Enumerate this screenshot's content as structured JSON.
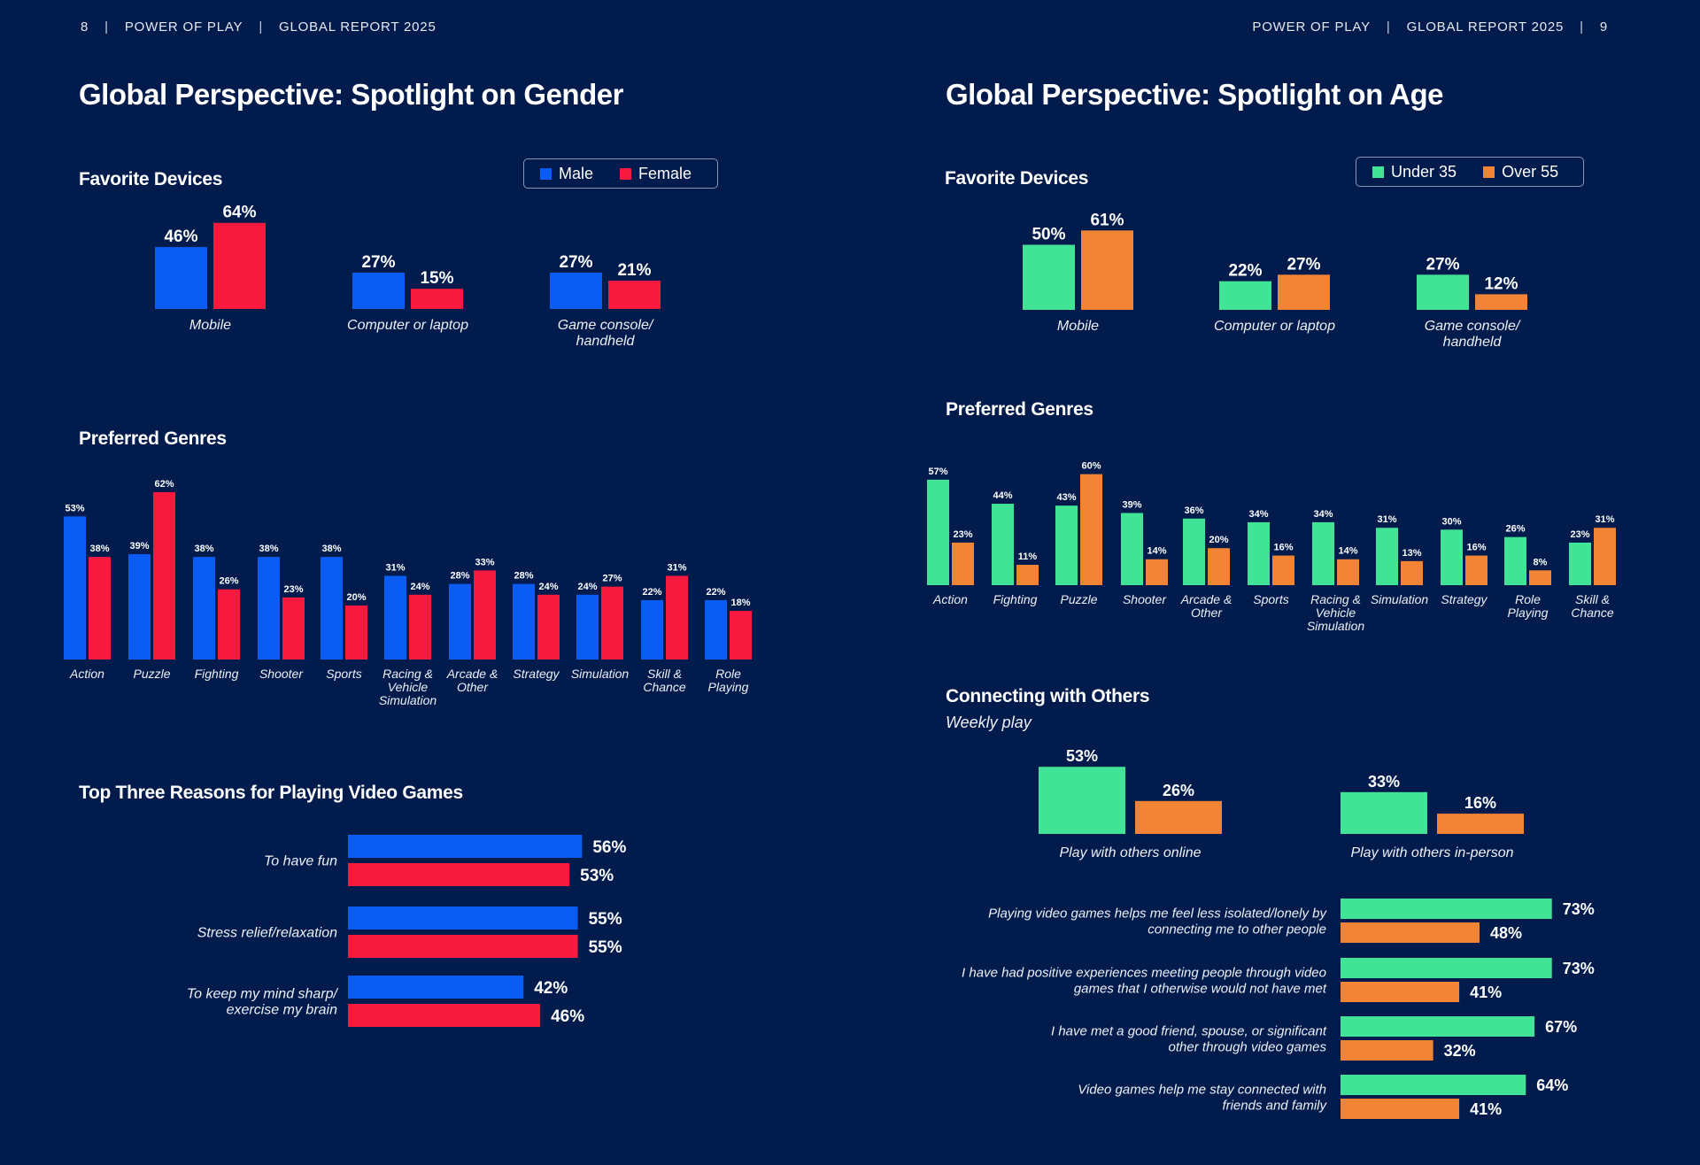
{
  "header_left": {
    "page": "8",
    "brand": "POWER OF PLAY",
    "report": "GLOBAL REPORT 2025"
  },
  "header_right": {
    "brand": "POWER OF PLAY",
    "report": "GLOBAL REPORT 2025",
    "page": "9"
  },
  "left": {
    "title": "Global Perspective: Spotlight on Gender",
    "legend": [
      {
        "label": "Male",
        "color": "#0a5cf2"
      },
      {
        "label": "Female",
        "color": "#f8193f"
      }
    ],
    "devices_title": "Favorite Devices",
    "genres_title": "Preferred Genres",
    "reasons_title": "Top Three Reasons for Playing Video Games"
  },
  "right": {
    "title": "Global Perspective: Spotlight on Age",
    "legend": [
      {
        "label": "Under 35",
        "color": "#41e397"
      },
      {
        "label": "Over 55",
        "color": "#f28535"
      }
    ],
    "devices_title": "Favorite Devices",
    "genres_title": "Preferred Genres",
    "connect_title": "Connecting with Others",
    "connect_subtitle": "Weekly play"
  },
  "chart_data": [
    {
      "id": "gender_devices",
      "type": "bar",
      "title": "Favorite Devices",
      "categories": [
        "Mobile",
        "Computer or laptop",
        "Game console/\nhandheld"
      ],
      "series": [
        {
          "name": "Male",
          "color": "#0a5cf2",
          "values": [
            46,
            27,
            27
          ]
        },
        {
          "name": "Female",
          "color": "#f8193f",
          "values": [
            64,
            15,
            21
          ]
        }
      ],
      "unit": "%",
      "ylim": [
        0,
        100
      ],
      "grid": false,
      "legend": "top-right"
    },
    {
      "id": "gender_genres",
      "type": "bar",
      "title": "Preferred Genres",
      "categories": [
        "Action",
        "Puzzle",
        "Fighting",
        "Shooter",
        "Sports",
        "Racing &\nVehicle\nSimulation",
        "Arcade &\nOther",
        "Strategy",
        "Simulation",
        "Skill &\nChance",
        "Role\nPlaying"
      ],
      "series": [
        {
          "name": "Male",
          "color": "#0a5cf2",
          "values": [
            53,
            39,
            38,
            38,
            38,
            31,
            28,
            28,
            24,
            22,
            22
          ]
        },
        {
          "name": "Female",
          "color": "#f8193f",
          "values": [
            38,
            62,
            26,
            23,
            20,
            24,
            33,
            24,
            27,
            31,
            18
          ]
        }
      ],
      "unit": "%",
      "ylim": [
        0,
        100
      ],
      "grid": false
    },
    {
      "id": "gender_reasons",
      "type": "bar",
      "orientation": "horizontal",
      "title": "Top Three Reasons for Playing Video Games",
      "categories": [
        "To have fun",
        "Stress relief/relaxation",
        "To keep my mind sharp/\nexercise my brain"
      ],
      "series": [
        {
          "name": "Male",
          "color": "#0a5cf2",
          "values": [
            56,
            55,
            42
          ]
        },
        {
          "name": "Female",
          "color": "#f8193f",
          "values": [
            53,
            55,
            46
          ]
        }
      ],
      "unit": "%",
      "xlim": [
        0,
        100
      ],
      "grid": false
    },
    {
      "id": "age_devices",
      "type": "bar",
      "title": "Favorite Devices",
      "categories": [
        "Mobile",
        "Computer or laptop",
        "Game console/\nhandheld"
      ],
      "series": [
        {
          "name": "Under 35",
          "color": "#41e397",
          "values": [
            50,
            22,
            27
          ]
        },
        {
          "name": "Over 55",
          "color": "#f28535",
          "values": [
            61,
            27,
            12
          ]
        }
      ],
      "unit": "%",
      "ylim": [
        0,
        100
      ],
      "grid": false,
      "legend": "top-right"
    },
    {
      "id": "age_genres",
      "type": "bar",
      "title": "Preferred Genres",
      "categories": [
        "Action",
        "Fighting",
        "Puzzle",
        "Shooter",
        "Arcade &\nOther",
        "Sports",
        "Racing &\nVehicle\nSimulation",
        "Simulation",
        "Strategy",
        "Role\nPlaying",
        "Skill &\nChance"
      ],
      "series": [
        {
          "name": "Under 35",
          "color": "#41e397",
          "values": [
            57,
            44,
            43,
            39,
            36,
            34,
            34,
            31,
            30,
            26,
            23
          ]
        },
        {
          "name": "Over 55",
          "color": "#f28535",
          "values": [
            23,
            11,
            60,
            14,
            20,
            16,
            14,
            13,
            16,
            8,
            31
          ]
        }
      ],
      "unit": "%",
      "ylim": [
        0,
        100
      ],
      "grid": false
    },
    {
      "id": "age_weekly_play",
      "type": "bar",
      "title": "Connecting with Others",
      "subtitle": "Weekly play",
      "categories": [
        "Play with others online",
        "Play with others in-person"
      ],
      "series": [
        {
          "name": "Under 35",
          "color": "#41e397",
          "values": [
            53,
            33
          ]
        },
        {
          "name": "Over 55",
          "color": "#f28535",
          "values": [
            26,
            16
          ]
        }
      ],
      "unit": "%",
      "ylim": [
        0,
        100
      ],
      "grid": false
    },
    {
      "id": "age_connection_statements",
      "type": "bar",
      "orientation": "horizontal",
      "title": "Connecting with Others",
      "categories": [
        "Playing video games helps me feel less isolated/lonely by\nconnecting me to other people",
        "I have had positive experiences meeting people through video\ngames that I otherwise would not have met",
        "I have met a good friend, spouse, or significant\nother through video games",
        "Video games help me stay connected with\nfriends and family"
      ],
      "series": [
        {
          "name": "Under 35",
          "color": "#41e397",
          "values": [
            73,
            73,
            67,
            64
          ]
        },
        {
          "name": "Over 55",
          "color": "#f28535",
          "values": [
            48,
            41,
            32,
            41
          ]
        }
      ],
      "unit": "%",
      "xlim": [
        0,
        100
      ],
      "grid": false
    }
  ]
}
